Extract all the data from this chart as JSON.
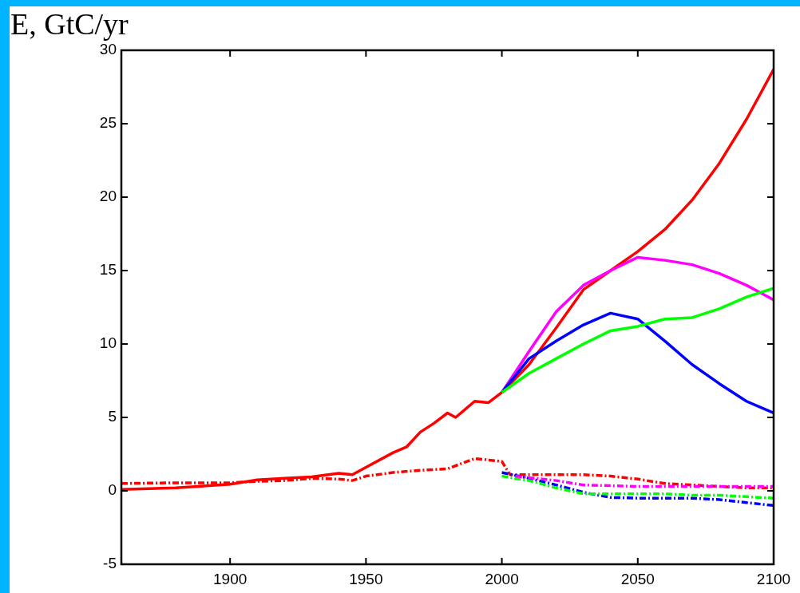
{
  "chart_data": {
    "type": "line",
    "ylabel": "E, GtC/yr",
    "xlim": [
      1860,
      2100
    ],
    "xticks": [
      1900,
      1950,
      2000,
      2050,
      2100
    ],
    "ylim": [
      -5,
      30
    ],
    "yticks": [
      -5,
      0,
      5,
      10,
      15,
      20,
      25,
      30
    ],
    "series": [
      {
        "color": "#ff0000",
        "line_style": "solid",
        "x": [
          1860,
          1880,
          1900,
          1910,
          1920,
          1930,
          1940,
          1945,
          1950,
          1960,
          1965,
          1970,
          1975,
          1980,
          1983,
          1990,
          1995,
          2000,
          2010,
          2020,
          2030,
          2040,
          2050,
          2060,
          2070,
          2080,
          2090,
          2100
        ],
        "values": [
          0.1,
          0.2,
          0.45,
          0.75,
          0.85,
          0.95,
          1.2,
          1.1,
          1.6,
          2.6,
          3.0,
          4.0,
          4.6,
          5.3,
          5.0,
          6.1,
          6.0,
          6.7,
          8.6,
          11.1,
          13.7,
          15.0,
          16.3,
          17.8,
          19.8,
          22.3,
          25.3,
          28.7
        ]
      },
      {
        "color": "#ff00ff",
        "line_style": "solid",
        "x": [
          2000,
          2010,
          2020,
          2030,
          2040,
          2050,
          2060,
          2070,
          2080,
          2090,
          2100
        ],
        "values": [
          6.7,
          9.5,
          12.2,
          14.0,
          15.0,
          15.9,
          15.7,
          15.4,
          14.8,
          14.0,
          13.0
        ]
      },
      {
        "color": "#0000ff",
        "line_style": "solid",
        "x": [
          2000,
          2010,
          2020,
          2030,
          2040,
          2050,
          2060,
          2070,
          2080,
          2090,
          2100
        ],
        "values": [
          6.7,
          9.0,
          10.2,
          11.3,
          12.1,
          11.7,
          10.2,
          8.6,
          7.3,
          6.1,
          5.3
        ]
      },
      {
        "color": "#00ff00",
        "line_style": "solid",
        "x": [
          2000,
          2010,
          2020,
          2030,
          2040,
          2050,
          2060,
          2070,
          2080,
          2090,
          2100
        ],
        "values": [
          6.7,
          8.0,
          9.0,
          10.0,
          10.9,
          11.2,
          11.7,
          11.8,
          12.4,
          13.2,
          13.8
        ]
      },
      {
        "color": "#ff0000",
        "line_style": "dashed",
        "x": [
          1860,
          1880,
          1900,
          1910,
          1920,
          1930,
          1940,
          1945,
          1950,
          1960,
          1970,
          1980,
          1990,
          2000,
          2003,
          2010,
          2020,
          2030,
          2040,
          2050,
          2060,
          2070,
          2080,
          2090,
          2100
        ],
        "values": [
          0.5,
          0.55,
          0.55,
          0.65,
          0.7,
          0.85,
          0.8,
          0.7,
          1.0,
          1.25,
          1.4,
          1.5,
          2.2,
          2.0,
          1.1,
          1.1,
          1.1,
          1.1,
          1.0,
          0.8,
          0.5,
          0.4,
          0.3,
          0.2,
          0.2
        ]
      },
      {
        "color": "#ff00ff",
        "line_style": "dashed",
        "x": [
          2005,
          2010,
          2020,
          2030,
          2040,
          2050,
          2060,
          2070,
          2080,
          2090,
          2100
        ],
        "values": [
          1.0,
          0.9,
          0.7,
          0.4,
          0.35,
          0.3,
          0.3,
          0.3,
          0.3,
          0.3,
          0.3
        ]
      },
      {
        "color": "#0000ff",
        "line_style": "dashed",
        "x": [
          2000,
          2010,
          2020,
          2030,
          2040,
          2050,
          2060,
          2070,
          2080,
          2090,
          2100
        ],
        "values": [
          1.25,
          0.85,
          0.4,
          -0.1,
          -0.45,
          -0.5,
          -0.5,
          -0.5,
          -0.6,
          -0.8,
          -1.0
        ]
      },
      {
        "color": "#00ff00",
        "line_style": "dashed",
        "x": [
          2000,
          2010,
          2020,
          2030,
          2040,
          2050,
          2060,
          2070,
          2080,
          2090,
          2100
        ],
        "values": [
          1.0,
          0.7,
          0.2,
          -0.2,
          -0.2,
          -0.2,
          -0.2,
          -0.3,
          -0.3,
          -0.4,
          -0.5
        ]
      }
    ]
  }
}
